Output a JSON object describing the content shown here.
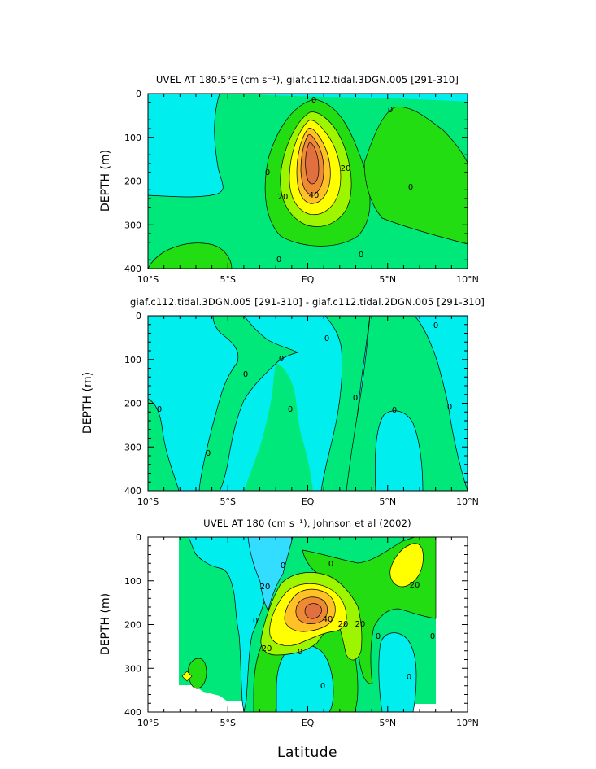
{
  "chart_data": [
    {
      "type": "contour",
      "title": "UVEL AT 180.5°E (cm s⁻¹), giaf.c112.tidal.3DGN.005 [291-310]",
      "ylabel": "DEPTH (m)",
      "xticks": [
        "10°S",
        "5°S",
        "EQ",
        "5°N",
        "10°N"
      ],
      "yticks": [
        "0",
        "100",
        "200",
        "300",
        "400"
      ],
      "xlim": [
        -10,
        10
      ],
      "ylim": [
        400,
        0
      ],
      "contour_labels": [
        "0",
        "0",
        "0",
        "0",
        "20",
        "20",
        "40",
        "0",
        "0",
        "0"
      ],
      "colors": {
        "below_0": "#00eeee",
        "0_to_10": "#00e87a",
        "10_to_20": "#22dd11",
        "20_to_30": "#9ef500",
        "30_to_40": "#ffff00",
        "40_to_50": "#ffc125",
        "50_to_60": "#ee8a33",
        "above_60": "#e07040"
      }
    },
    {
      "type": "contour",
      "title": "giaf.c112.tidal.3DGN.005 [291-310] - giaf.c112.tidal.2DGN.005 [291-310]",
      "ylabel": "DEPTH (m)",
      "xticks": [
        "10°S",
        "5°S",
        "EQ",
        "5°N",
        "10°N"
      ],
      "yticks": [
        "0",
        "100",
        "200",
        "300",
        "400"
      ],
      "xlim": [
        -10,
        10
      ],
      "ylim": [
        400,
        0
      ],
      "contour_labels": [
        "0",
        "0",
        "0",
        "0",
        "0",
        "0",
        "0",
        "0",
        "0",
        "0",
        "0"
      ]
    },
    {
      "type": "contour",
      "title": "UVEL AT 180 (cm s⁻¹), Johnson et al (2002)",
      "ylabel": "DEPTH (m)",
      "xlabel": "Latitude",
      "xticks": [
        "10°S",
        "5°S",
        "EQ",
        "5°N",
        "10°N"
      ],
      "yticks": [
        "0",
        "100",
        "200",
        "300",
        "400"
      ],
      "xlim": [
        -10,
        10
      ],
      "ylim": [
        400,
        0
      ],
      "contour_labels": [
        "20",
        "0",
        "40",
        "20",
        "20",
        "20",
        "0",
        "0",
        "0",
        "0",
        "0",
        "20",
        "0",
        "0"
      ]
    }
  ]
}
